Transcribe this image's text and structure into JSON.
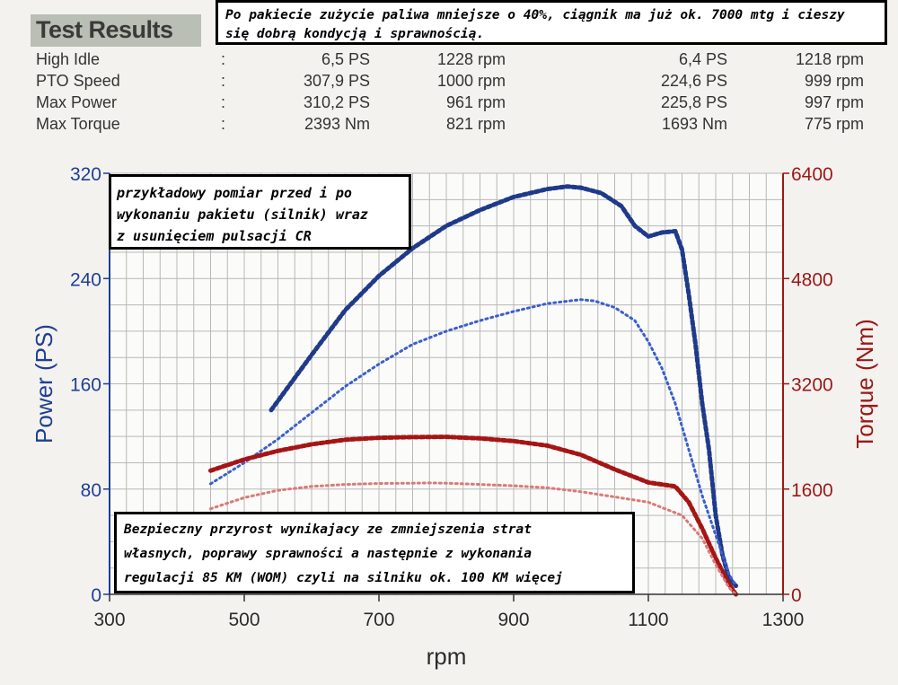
{
  "results": {
    "title": "Test Results",
    "colon": ":",
    "rows": [
      {
        "label": "High Idle",
        "v1": "6,5 PS",
        "r1": "1228 rpm",
        "v2": "6,4 PS",
        "r2": "1218 rpm"
      },
      {
        "label": "PTO Speed",
        "v1": "307,9 PS",
        "r1": "1000 rpm",
        "v2": "224,6 PS",
        "r2": "999 rpm"
      },
      {
        "label": "Max Power",
        "v1": "310,2 PS",
        "r1": "961 rpm",
        "v2": "225,8 PS",
        "r2": "997 rpm"
      },
      {
        "label": "Max Torque",
        "v1": "2393 Nm",
        "r1": "821 rpm",
        "v2": "1693 Nm",
        "r2": "775 rpm"
      }
    ]
  },
  "notes": {
    "top_line1": "Po pakiecie zużycie paliwa mniejsze o 40%, ciągnik ma już ok. 7000 mtg i cieszy",
    "top_line2": "się dobrą kondycją i sprawnością.",
    "left_line1": "przykładowy pomiar przed i po",
    "left_line2": "wykonaniu pakietu (silnik) wraz",
    "left_line3": "z usunięciem pulsacji CR",
    "bottom_line1": "Bezpieczny przyrost wynikajacy ze zmniejszenia strat",
    "bottom_line2": "własnych, poprawy sprawności a następnie z wykonania",
    "bottom_line3": "regulacji 85 KM (WOM) czyli na silniku ok. 100 KM więcej"
  },
  "colors": {
    "power_after": "#1f3a8a",
    "power_before": "#3a5fcd",
    "torque_after": "#a51515",
    "torque_before": "#d97a7a",
    "left_axis": "#1f3f94",
    "right_axis": "#9b1818",
    "grid": "#b8b8b8"
  },
  "chart_data": {
    "type": "line",
    "xlabel": "rpm",
    "ylabel": "Power (PS)",
    "y2label": "Torque (Nm)",
    "xlim": [
      300,
      1300
    ],
    "ylim": [
      0,
      320
    ],
    "y2lim": [
      0,
      6400
    ],
    "xticks": [
      300,
      500,
      700,
      900,
      1100,
      1300
    ],
    "yticks": [
      0,
      80,
      160,
      240,
      320
    ],
    "y2ticks": [
      0,
      1600,
      3200,
      4800,
      6400
    ],
    "grid": true,
    "series": [
      {
        "axis": "left",
        "style": "after",
        "x": [
          540,
          600,
          650,
          700,
          750,
          800,
          850,
          900,
          950,
          980,
          1000,
          1030,
          1060,
          1080,
          1100,
          1120,
          1140,
          1150,
          1160,
          1170,
          1180,
          1190,
          1200,
          1210,
          1220,
          1230
        ],
        "values": [
          140,
          182,
          216,
          242,
          263,
          280,
          292,
          302,
          308,
          310,
          309,
          305,
          295,
          280,
          272,
          275,
          276,
          262,
          228,
          190,
          145,
          110,
          60,
          30,
          12,
          6.5
        ]
      },
      {
        "axis": "left",
        "style": "before",
        "x": [
          450,
          500,
          550,
          600,
          650,
          700,
          750,
          800,
          850,
          900,
          950,
          1000,
          1020,
          1050,
          1080,
          1100,
          1120,
          1140,
          1160,
          1180,
          1200,
          1220,
          1230
        ],
        "values": [
          84,
          100,
          118,
          138,
          158,
          175,
          190,
          200,
          208,
          215,
          221,
          224,
          223,
          218,
          208,
          192,
          172,
          145,
          110,
          75,
          45,
          15,
          6.4
        ]
      },
      {
        "axis": "right",
        "style": "after",
        "x": [
          450,
          500,
          550,
          600,
          650,
          700,
          750,
          800,
          850,
          900,
          950,
          1000,
          1050,
          1100,
          1140,
          1160,
          1180,
          1200,
          1220,
          1230
        ],
        "values": [
          1880,
          2050,
          2180,
          2280,
          2350,
          2380,
          2390,
          2393,
          2370,
          2330,
          2260,
          2120,
          1900,
          1700,
          1640,
          1400,
          1000,
          550,
          150,
          0
        ]
      },
      {
        "axis": "right",
        "style": "before",
        "x": [
          450,
          500,
          550,
          600,
          650,
          700,
          750,
          775,
          800,
          850,
          900,
          950,
          1000,
          1050,
          1100,
          1150,
          1180,
          1200,
          1220,
          1230
        ],
        "values": [
          1300,
          1470,
          1580,
          1640,
          1670,
          1685,
          1690,
          1693,
          1690,
          1670,
          1650,
          1620,
          1560,
          1480,
          1400,
          1200,
          850,
          450,
          100,
          0
        ]
      }
    ]
  }
}
